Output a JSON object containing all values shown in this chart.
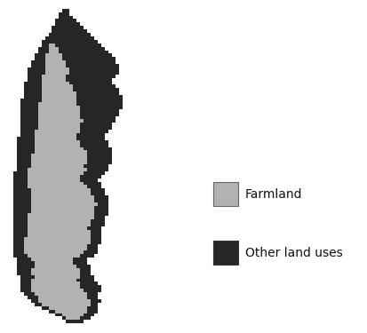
{
  "farmland_color": "#b2b2b2",
  "other_color": "#262626",
  "background_color": "#ffffff",
  "legend_farmland_label": "Farmland",
  "legend_other_label": "Other land uses",
  "text_fontsize": 10,
  "figsize": [
    4.13,
    3.75
  ],
  "dpi": 100
}
